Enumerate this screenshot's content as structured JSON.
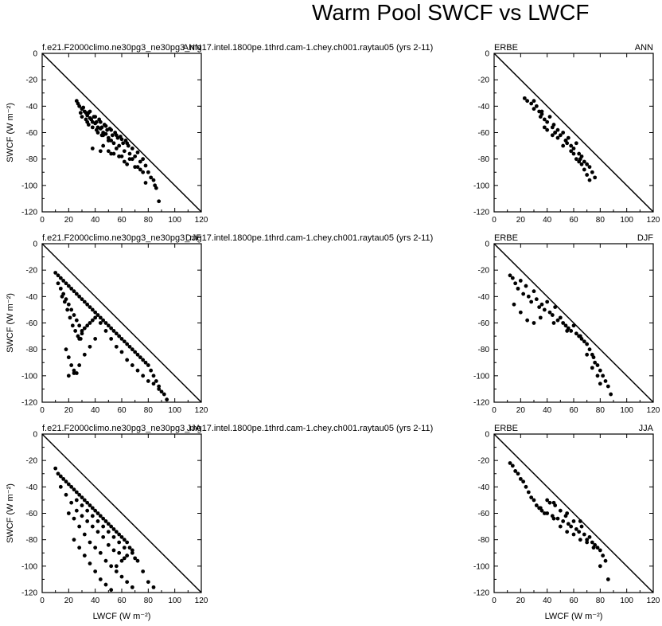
{
  "title": "Warm Pool SWCF vs LWCF",
  "chart_data": [
    {
      "type": "scatter",
      "left_label": "f.e21.F2000climo.ne30pg3_ne30pg3_mg17.intel.1800pe.1thrd.cam-1.chey.ch001.raytau05 (yrs 2-11)",
      "right_label": "ANN",
      "xlabel": "",
      "ylabel": "SWCF (W m⁻²)",
      "xlim": [
        0,
        120
      ],
      "ylim": [
        -120,
        0
      ],
      "x_ticks": [
        "0",
        "20",
        "40",
        "60",
        "80",
        "100",
        "120"
      ],
      "y_ticks": [
        "0",
        "-20",
        "-40",
        "-60",
        "-80",
        "-100",
        "-120"
      ],
      "reference_line": "SWCF = -LWCF",
      "series": [
        {
          "x": [
            26,
            28,
            30,
            29,
            32,
            34,
            33,
            36,
            38,
            35,
            40,
            42,
            41,
            44,
            46,
            45,
            48,
            50,
            52,
            30,
            34,
            38,
            42,
            46,
            50,
            54,
            58,
            62,
            66,
            70,
            74,
            78,
            80,
            84,
            86,
            88,
            36,
            40,
            44,
            48,
            52,
            56,
            60,
            64,
            68,
            72,
            76,
            30,
            33,
            37,
            41,
            45,
            49,
            53,
            57,
            61,
            65,
            27,
            31,
            35,
            39,
            43,
            47,
            51,
            55,
            59,
            63,
            38,
            44,
            52,
            58,
            64,
            70,
            76,
            82,
            85,
            62,
            68,
            74,
            78,
            56,
            60,
            66,
            72,
            46,
            50,
            54,
            58
          ],
          "y": [
            -36,
            -40,
            -42,
            -45,
            -44,
            -47,
            -50,
            -49,
            -52,
            -54,
            -53,
            -56,
            -58,
            -57,
            -60,
            -62,
            -61,
            -64,
            -66,
            -48,
            -52,
            -56,
            -60,
            -62,
            -66,
            -68,
            -70,
            -74,
            -76,
            -78,
            -82,
            -85,
            -90,
            -96,
            -102,
            -112,
            -44,
            -48,
            -52,
            -55,
            -58,
            -62,
            -65,
            -68,
            -72,
            -75,
            -80,
            -42,
            -45,
            -50,
            -52,
            -56,
            -58,
            -62,
            -64,
            -68,
            -70,
            -38,
            -41,
            -45,
            -48,
            -50,
            -54,
            -57,
            -60,
            -63,
            -66,
            -72,
            -74,
            -76,
            -78,
            -84,
            -86,
            -90,
            -94,
            -100,
            -82,
            -80,
            -88,
            -98,
            -72,
            -78,
            -80,
            -86,
            -70,
            -74,
            -76,
            -78
          ]
        }
      ]
    },
    {
      "type": "scatter",
      "left_label": "ERBE",
      "right_label": "ANN",
      "xlabel": "",
      "ylabel": "",
      "xlim": [
        0,
        120
      ],
      "ylim": [
        -120,
        0
      ],
      "x_ticks": [
        "0",
        "20",
        "40",
        "60",
        "80",
        "100",
        "120"
      ],
      "y_ticks": [
        "0",
        "-20",
        "-40",
        "-60",
        "-80",
        "-100",
        "-120"
      ],
      "reference_line": "SWCF = -LWCF",
      "series": [
        {
          "x": [
            23,
            25,
            28,
            30,
            32,
            34,
            35,
            36,
            38,
            40,
            42,
            44,
            45,
            46,
            48,
            50,
            52,
            54,
            55,
            56,
            58,
            60,
            62,
            64,
            65,
            66,
            68,
            70,
            72,
            74,
            76,
            30,
            36,
            40,
            44,
            48,
            52,
            58,
            62,
            66,
            70,
            38,
            46,
            54,
            60,
            64,
            68,
            72
          ],
          "y": [
            -34,
            -36,
            -38,
            -42,
            -40,
            -44,
            -48,
            -46,
            -50,
            -52,
            -48,
            -56,
            -54,
            -60,
            -58,
            -62,
            -60,
            -66,
            -68,
            -64,
            -70,
            -72,
            -68,
            -76,
            -80,
            -78,
            -82,
            -84,
            -86,
            -90,
            -94,
            -36,
            -44,
            -58,
            -62,
            -64,
            -70,
            -74,
            -80,
            -84,
            -92,
            -56,
            -60,
            -66,
            -76,
            -82,
            -88,
            -96
          ]
        }
      ]
    },
    {
      "type": "scatter",
      "left_label": "f.e21.F2000climo.ne30pg3_ne30pg3_mg17.intel.1800pe.1thrd.cam-1.chey.ch001.raytau05 (yrs 2-11)",
      "right_label": "DJF",
      "xlabel": "",
      "ylabel": "SWCF (W m⁻²)",
      "xlim": [
        0,
        120
      ],
      "ylim": [
        -120,
        0
      ],
      "x_ticks": [
        "0",
        "20",
        "40",
        "60",
        "80",
        "100",
        "120"
      ],
      "y_ticks": [
        "0",
        "-20",
        "-40",
        "-60",
        "-80",
        "-100",
        "-120"
      ],
      "reference_line": "SWCF = -LWCF",
      "series": [
        {
          "x": [
            10,
            12,
            14,
            16,
            18,
            20,
            22,
            24,
            26,
            28,
            30,
            32,
            34,
            36,
            38,
            40,
            42,
            44,
            46,
            48,
            50,
            52,
            54,
            56,
            58,
            60,
            62,
            64,
            66,
            68,
            70,
            72,
            74,
            76,
            78,
            80,
            82,
            84,
            86,
            88,
            90,
            12,
            14,
            16,
            18,
            20,
            22,
            24,
            26,
            28,
            30,
            15,
            17,
            19,
            21,
            23,
            25,
            27,
            29,
            18,
            20,
            22,
            24,
            26,
            28,
            30,
            32,
            34,
            36,
            38,
            40,
            44,
            48,
            52,
            56,
            60,
            64,
            68,
            72,
            76,
            80,
            84,
            88,
            92,
            94,
            20,
            24,
            28,
            32,
            36,
            40
          ],
          "y": [
            -22,
            -24,
            -26,
            -28,
            -30,
            -32,
            -34,
            -36,
            -38,
            -40,
            -42,
            -44,
            -46,
            -48,
            -50,
            -52,
            -54,
            -56,
            -58,
            -60,
            -62,
            -64,
            -66,
            -68,
            -70,
            -72,
            -74,
            -76,
            -78,
            -80,
            -82,
            -84,
            -86,
            -88,
            -90,
            -92,
            -96,
            -100,
            -104,
            -108,
            -112,
            -30,
            -34,
            -38,
            -42,
            -46,
            -50,
            -54,
            -58,
            -62,
            -66,
            -40,
            -44,
            -50,
            -56,
            -62,
            -66,
            -70,
            -72,
            -80,
            -86,
            -92,
            -96,
            -98,
            -72,
            -68,
            -64,
            -62,
            -60,
            -58,
            -56,
            -60,
            -66,
            -72,
            -78,
            -82,
            -88,
            -92,
            -96,
            -100,
            -104,
            -106,
            -110,
            -114,
            -118,
            -100,
            -98,
            -92,
            -84,
            -78,
            -72
          ]
        }
      ]
    },
    {
      "type": "scatter",
      "left_label": "ERBE",
      "right_label": "DJF",
      "xlabel": "",
      "ylabel": "",
      "xlim": [
        0,
        120
      ],
      "ylim": [
        -120,
        0
      ],
      "x_ticks": [
        "0",
        "20",
        "40",
        "60",
        "80",
        "100",
        "120"
      ],
      "y_ticks": [
        "0",
        "-20",
        "-40",
        "-60",
        "-80",
        "-100",
        "-120"
      ],
      "reference_line": "SWCF = -LWCF",
      "series": [
        {
          "x": [
            12,
            14,
            16,
            18,
            20,
            22,
            24,
            26,
            28,
            30,
            32,
            34,
            36,
            38,
            40,
            42,
            44,
            46,
            48,
            50,
            52,
            54,
            56,
            58,
            60,
            62,
            64,
            66,
            68,
            70,
            72,
            74,
            75,
            76,
            78,
            80,
            82,
            84,
            86,
            88,
            15,
            20,
            25,
            30,
            35,
            45,
            55,
            65,
            70,
            74,
            78,
            80
          ],
          "y": [
            -24,
            -26,
            -30,
            -34,
            -28,
            -38,
            -32,
            -40,
            -44,
            -36,
            -42,
            -48,
            -46,
            -50,
            -44,
            -52,
            -54,
            -48,
            -58,
            -56,
            -60,
            -62,
            -64,
            -66,
            -62,
            -68,
            -70,
            -72,
            -74,
            -76,
            -80,
            -84,
            -86,
            -90,
            -92,
            -96,
            -100,
            -104,
            -108,
            -114,
            -46,
            -52,
            -58,
            -60,
            -56,
            -60,
            -66,
            -70,
            -84,
            -94,
            -100,
            -106
          ]
        }
      ]
    },
    {
      "type": "scatter",
      "left_label": "f.e21.F2000climo.ne30pg3_ne30pg3_mg17.intel.1800pe.1thrd.cam-1.chey.ch001.raytau05 (yrs 2-11)",
      "right_label": "JJA",
      "xlabel": "LWCF (W m⁻²)",
      "ylabel": "SWCF (W m⁻²)",
      "xlim": [
        0,
        120
      ],
      "ylim": [
        -120,
        0
      ],
      "x_ticks": [
        "0",
        "20",
        "40",
        "60",
        "80",
        "100",
        "120"
      ],
      "y_ticks": [
        "0",
        "-20",
        "-40",
        "-60",
        "-80",
        "-100",
        "-120"
      ],
      "reference_line": "SWCF = -LWCF",
      "series": [
        {
          "x": [
            10,
            12,
            14,
            16,
            18,
            20,
            22,
            24,
            26,
            28,
            30,
            32,
            34,
            36,
            38,
            40,
            42,
            44,
            46,
            48,
            50,
            52,
            54,
            56,
            58,
            60,
            62,
            64,
            66,
            68,
            70,
            14,
            18,
            22,
            26,
            30,
            34,
            38,
            42,
            46,
            50,
            54,
            58,
            62,
            20,
            24,
            28,
            32,
            36,
            40,
            44,
            48,
            52,
            56,
            60,
            64,
            68,
            26,
            30,
            34,
            38,
            42,
            46,
            50,
            54,
            58,
            62,
            24,
            28,
            32,
            36,
            40,
            44,
            48,
            52,
            56,
            60,
            64,
            68,
            72,
            76,
            80,
            84
          ],
          "y": [
            -26,
            -30,
            -32,
            -34,
            -36,
            -38,
            -40,
            -42,
            -44,
            -46,
            -48,
            -50,
            -52,
            -54,
            -56,
            -58,
            -60,
            -62,
            -64,
            -66,
            -68,
            -70,
            -72,
            -74,
            -76,
            -78,
            -80,
            -82,
            -86,
            -90,
            -94,
            -40,
            -46,
            -52,
            -58,
            -62,
            -66,
            -70,
            -74,
            -78,
            -84,
            -88,
            -90,
            -94,
            -60,
            -64,
            -70,
            -76,
            -82,
            -86,
            -90,
            -96,
            -100,
            -104,
            -108,
            -112,
            -116,
            -50,
            -54,
            -58,
            -62,
            -66,
            -70,
            -74,
            -78,
            -82,
            -86,
            -80,
            -86,
            -92,
            -98,
            -104,
            -110,
            -114,
            -118,
            -100,
            -96,
            -92,
            -88,
            -96,
            -104,
            -112,
            -116
          ]
        }
      ]
    },
    {
      "type": "scatter",
      "left_label": "ERBE",
      "right_label": "JJA",
      "xlabel": "LWCF (W m⁻²)",
      "ylabel": "",
      "xlim": [
        0,
        120
      ],
      "ylim": [
        -120,
        0
      ],
      "x_ticks": [
        "0",
        "20",
        "40",
        "60",
        "80",
        "100",
        "120"
      ],
      "y_ticks": [
        "0",
        "-20",
        "-40",
        "-60",
        "-80",
        "-100",
        "-120"
      ],
      "reference_line": "SWCF = -LWCF",
      "series": [
        {
          "x": [
            12,
            14,
            16,
            18,
            20,
            22,
            24,
            26,
            28,
            30,
            32,
            34,
            36,
            38,
            40,
            42,
            44,
            46,
            48,
            50,
            52,
            54,
            56,
            58,
            60,
            62,
            64,
            66,
            68,
            70,
            72,
            74,
            76,
            78,
            80,
            82,
            84,
            86,
            40,
            45,
            50,
            55,
            60,
            65,
            70,
            75,
            80,
            35,
            45,
            55,
            65
          ],
          "y": [
            -22,
            -24,
            -28,
            -30,
            -34,
            -36,
            -40,
            -44,
            -48,
            -50,
            -54,
            -56,
            -58,
            -60,
            -50,
            -52,
            -62,
            -54,
            -64,
            -58,
            -66,
            -62,
            -68,
            -70,
            -66,
            -72,
            -74,
            -70,
            -76,
            -80,
            -78,
            -82,
            -84,
            -86,
            -88,
            -92,
            -96,
            -110,
            -60,
            -64,
            -70,
            -74,
            -76,
            -80,
            -82,
            -86,
            -100,
            -56,
            -52,
            -60,
            -66
          ]
        }
      ]
    }
  ]
}
